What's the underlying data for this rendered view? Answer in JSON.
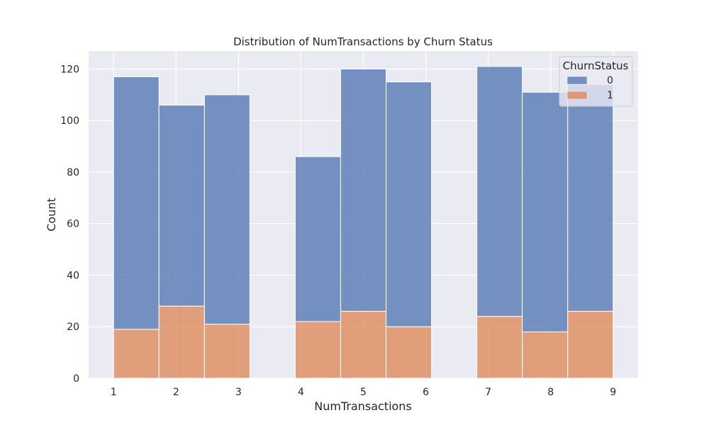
{
  "chart_data": {
    "type": "bar",
    "title": "Distribution of NumTransactions by Churn Status",
    "xlabel": "NumTransactions",
    "ylabel": "Count",
    "xlim": [
      0.6,
      9.4
    ],
    "ylim": [
      0,
      127
    ],
    "x_ticks": [
      1,
      2,
      3,
      4,
      5,
      6,
      7,
      8,
      9
    ],
    "y_ticks": [
      0,
      20,
      40,
      60,
      80,
      100,
      120
    ],
    "grid": true,
    "stacked": true,
    "legend": {
      "title": "ChurnStatus",
      "placement": "top-right",
      "entries": [
        "0",
        "1"
      ]
    },
    "bins": [
      {
        "start": 1.0,
        "end": 1.727
      },
      {
        "start": 1.727,
        "end": 2.455
      },
      {
        "start": 2.455,
        "end": 3.182
      },
      {
        "start": 3.909,
        "end": 4.636
      },
      {
        "start": 4.636,
        "end": 5.364
      },
      {
        "start": 5.364,
        "end": 6.091
      },
      {
        "start": 6.818,
        "end": 7.545
      },
      {
        "start": 7.545,
        "end": 8.273
      },
      {
        "start": 8.273,
        "end": 9.0
      }
    ],
    "series": [
      {
        "name": "0",
        "color": "#4c72b0",
        "values": [
          98,
          78,
          89,
          64,
          94,
          95,
          97,
          93,
          88
        ]
      },
      {
        "name": "1",
        "color": "#dd8452",
        "values": [
          19,
          28,
          21,
          22,
          26,
          20,
          24,
          18,
          26
        ]
      }
    ]
  }
}
